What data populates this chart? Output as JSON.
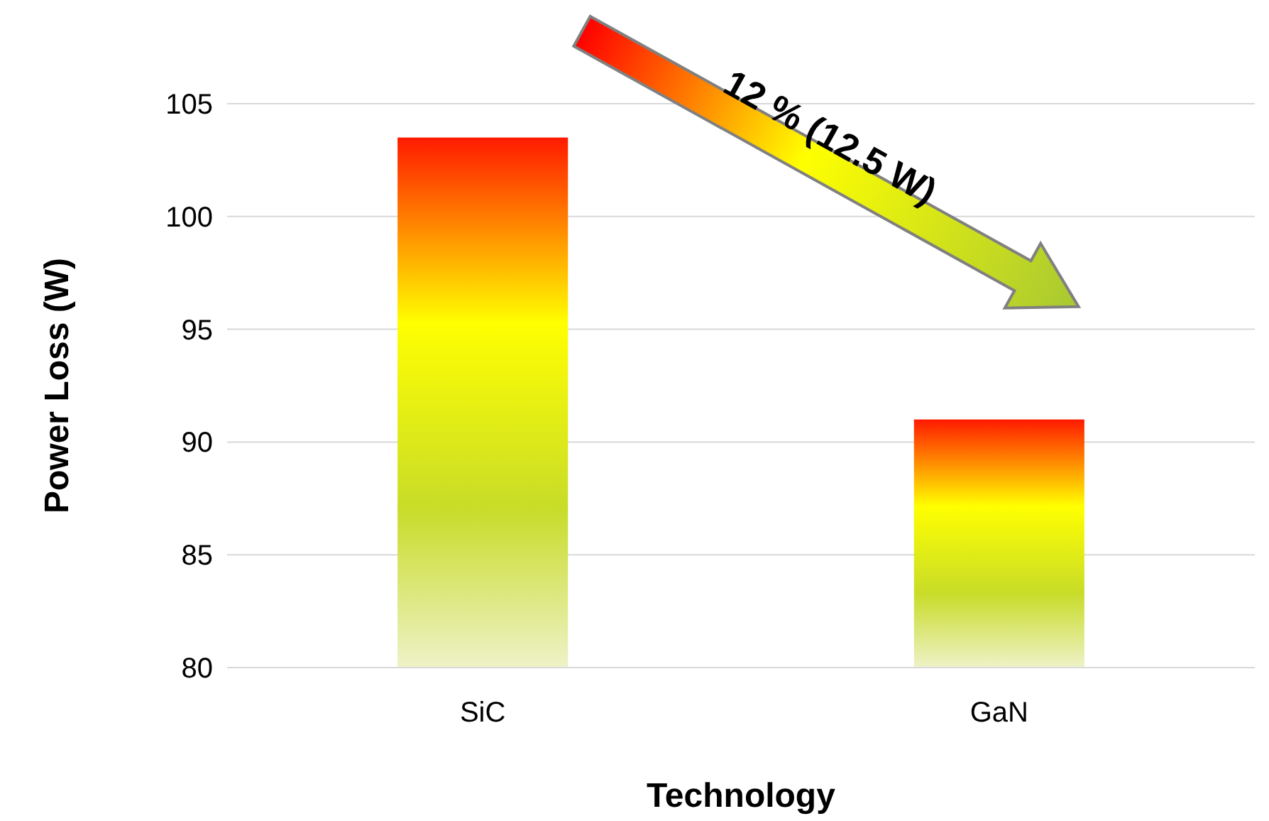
{
  "chart_data": {
    "type": "bar",
    "xlabel": "Technology",
    "ylabel": "Power Loss (W)",
    "categories": [
      "SiC",
      "GaN"
    ],
    "values": [
      103.5,
      91.0
    ],
    "colors": [
      "#c8dc28",
      "#c8dc28"
    ],
    "ylim": [
      80,
      105
    ],
    "yticks": [
      80,
      85,
      90,
      95,
      100,
      105
    ],
    "grid": "y",
    "annotations": [
      "12 % (12.5 W)"
    ]
  }
}
